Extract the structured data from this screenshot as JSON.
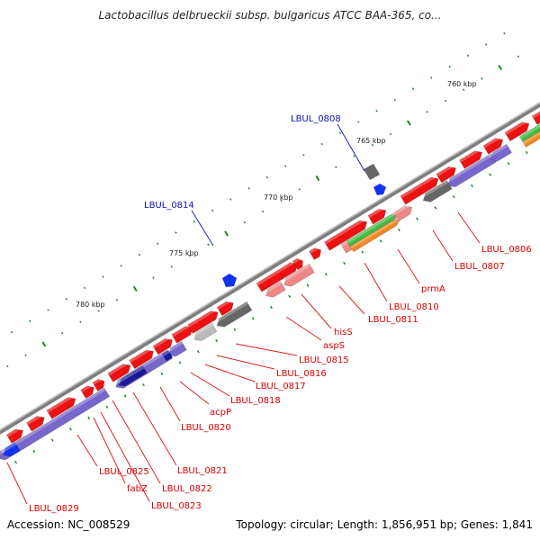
{
  "title": "Lactobacillus delbrueckii subsp. bulgaricus ATCC BAA-365, co...",
  "footer": {
    "accession": "Accession: NC_008529",
    "summary": "Topology: circular; Length: 1,856,951 bp; Genes: 1,841"
  },
  "scale_labels": [
    "760 kbp",
    "765 kbp",
    "770 kbp",
    "775 kbp",
    "780 kbp"
  ],
  "gene_labels_blue": [
    "LBUL_0808",
    "LBUL_0814"
  ],
  "gene_labels_red": [
    "LBUL_0806",
    "LBUL_0807",
    "prmA",
    "LBUL_0810",
    "LBUL_0811",
    "hisS",
    "aspS",
    "LBUL_0815",
    "LBUL_0816",
    "LBUL_0817",
    "LBUL_0818",
    "acpP",
    "LBUL_0820",
    "LBUL_0821",
    "LBUL_0822",
    "LBUL_0823",
    "fabZ",
    "LBUL_0825",
    "LBUL_0829"
  ],
  "colors": {
    "forward_cds": "#ee1111",
    "reverse_cds": "#7766cc",
    "gray_feature": "#666666",
    "light_red": "#ee8888",
    "green_feature": "#44bb44",
    "orange_feature": "#ee8822",
    "blue_marker": "#1133ee",
    "backbone": "#888888",
    "tick": "#228822",
    "red_label": "#dd0000",
    "blue_label": "#1111aa"
  }
}
